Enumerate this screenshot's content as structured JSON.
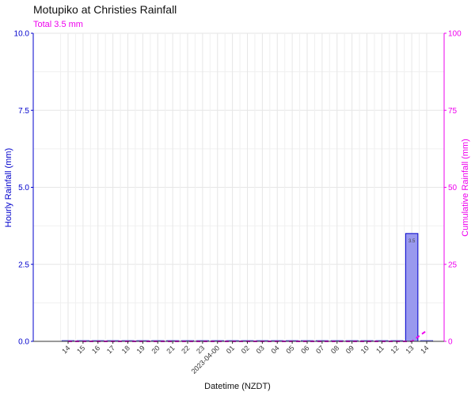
{
  "chart_data": {
    "type": "bar",
    "title": "Motupiko at Christies Rainfall",
    "subtitle": "Total 3.5 mm",
    "xlabel": "Datetime (NZDT)",
    "ylabel_left": "Hourly Rainfall (mm)",
    "ylabel_right": "Cumulative Rainfall (mm)",
    "ylim_left": [
      0,
      10
    ],
    "ylim_right": [
      0,
      100
    ],
    "yticks_left": [
      "0.0",
      "2.5",
      "5.0",
      "7.5",
      "10.0"
    ],
    "yticks_right": [
      "0",
      "25",
      "50",
      "75",
      "100"
    ],
    "grid": true,
    "categories": [
      "14",
      "15",
      "16",
      "17",
      "18",
      "19",
      "20",
      "21",
      "22",
      "23",
      "2023-04-00",
      "01",
      "02",
      "03",
      "04",
      "05",
      "06",
      "07",
      "08",
      "09",
      "10",
      "11",
      "12",
      "13",
      "14"
    ],
    "series": [
      {
        "name": "Hourly Rainfall (mm)",
        "kind": "bar",
        "axis": "left",
        "values": [
          0,
          0,
          0,
          0,
          0,
          0,
          0,
          0,
          0,
          0,
          0,
          0,
          0,
          0,
          0,
          0,
          0,
          0,
          0,
          0,
          0,
          0,
          0,
          3.5,
          0
        ],
        "data_labels": [
          "",
          "",
          "",
          "",
          "",
          "",
          "",
          "",
          "",
          "",
          "",
          "",
          "",
          "",
          "",
          "",
          "",
          "",
          "",
          "",
          "",
          "",
          "",
          "3.5",
          ""
        ]
      },
      {
        "name": "Cumulative Rainfall (mm)",
        "kind": "line",
        "axis": "right",
        "values": [
          0,
          0,
          0,
          0,
          0,
          0,
          0,
          0,
          0,
          0,
          0,
          0,
          0,
          0,
          0,
          0,
          0,
          0,
          0,
          0,
          0,
          0,
          0,
          0,
          3.5
        ]
      }
    ],
    "colors": {
      "left_axis": "#0000cc",
      "right_axis": "#ee00ee",
      "bar_fill": "#9999ee",
      "bar_stroke": "#0000cc",
      "cumulative_line": "#ee00ee",
      "grid": "#e6e6e6"
    }
  }
}
